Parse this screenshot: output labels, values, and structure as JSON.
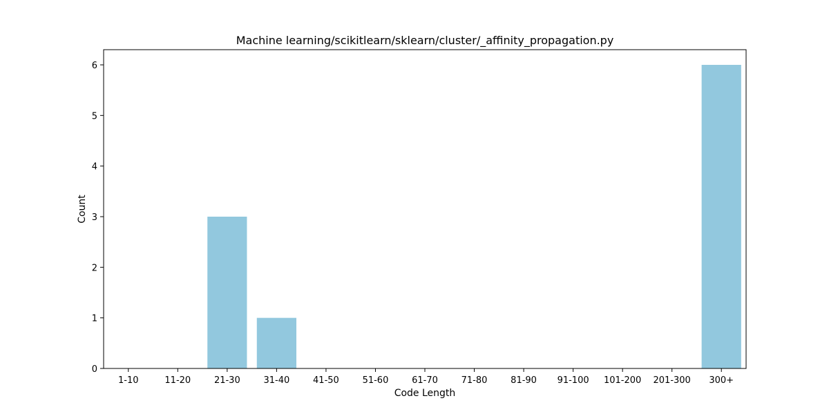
{
  "chart_data": {
    "type": "bar",
    "title": "Machine learning/scikitlearn/sklearn/cluster/_affinity_propagation.py",
    "xlabel": "Code Length",
    "ylabel": "Count",
    "categories": [
      "1-10",
      "11-20",
      "21-30",
      "31-40",
      "41-50",
      "51-60",
      "61-70",
      "71-80",
      "81-90",
      "91-100",
      "101-200",
      "201-300",
      "300+"
    ],
    "values": [
      0,
      0,
      3,
      1,
      0,
      0,
      0,
      0,
      0,
      0,
      0,
      0,
      6
    ],
    "ylim": [
      0,
      6.3
    ],
    "yticks": [
      0,
      1,
      2,
      3,
      4,
      5,
      6
    ],
    "bar_color": "#92c8de",
    "grid": false,
    "legend": "none"
  }
}
